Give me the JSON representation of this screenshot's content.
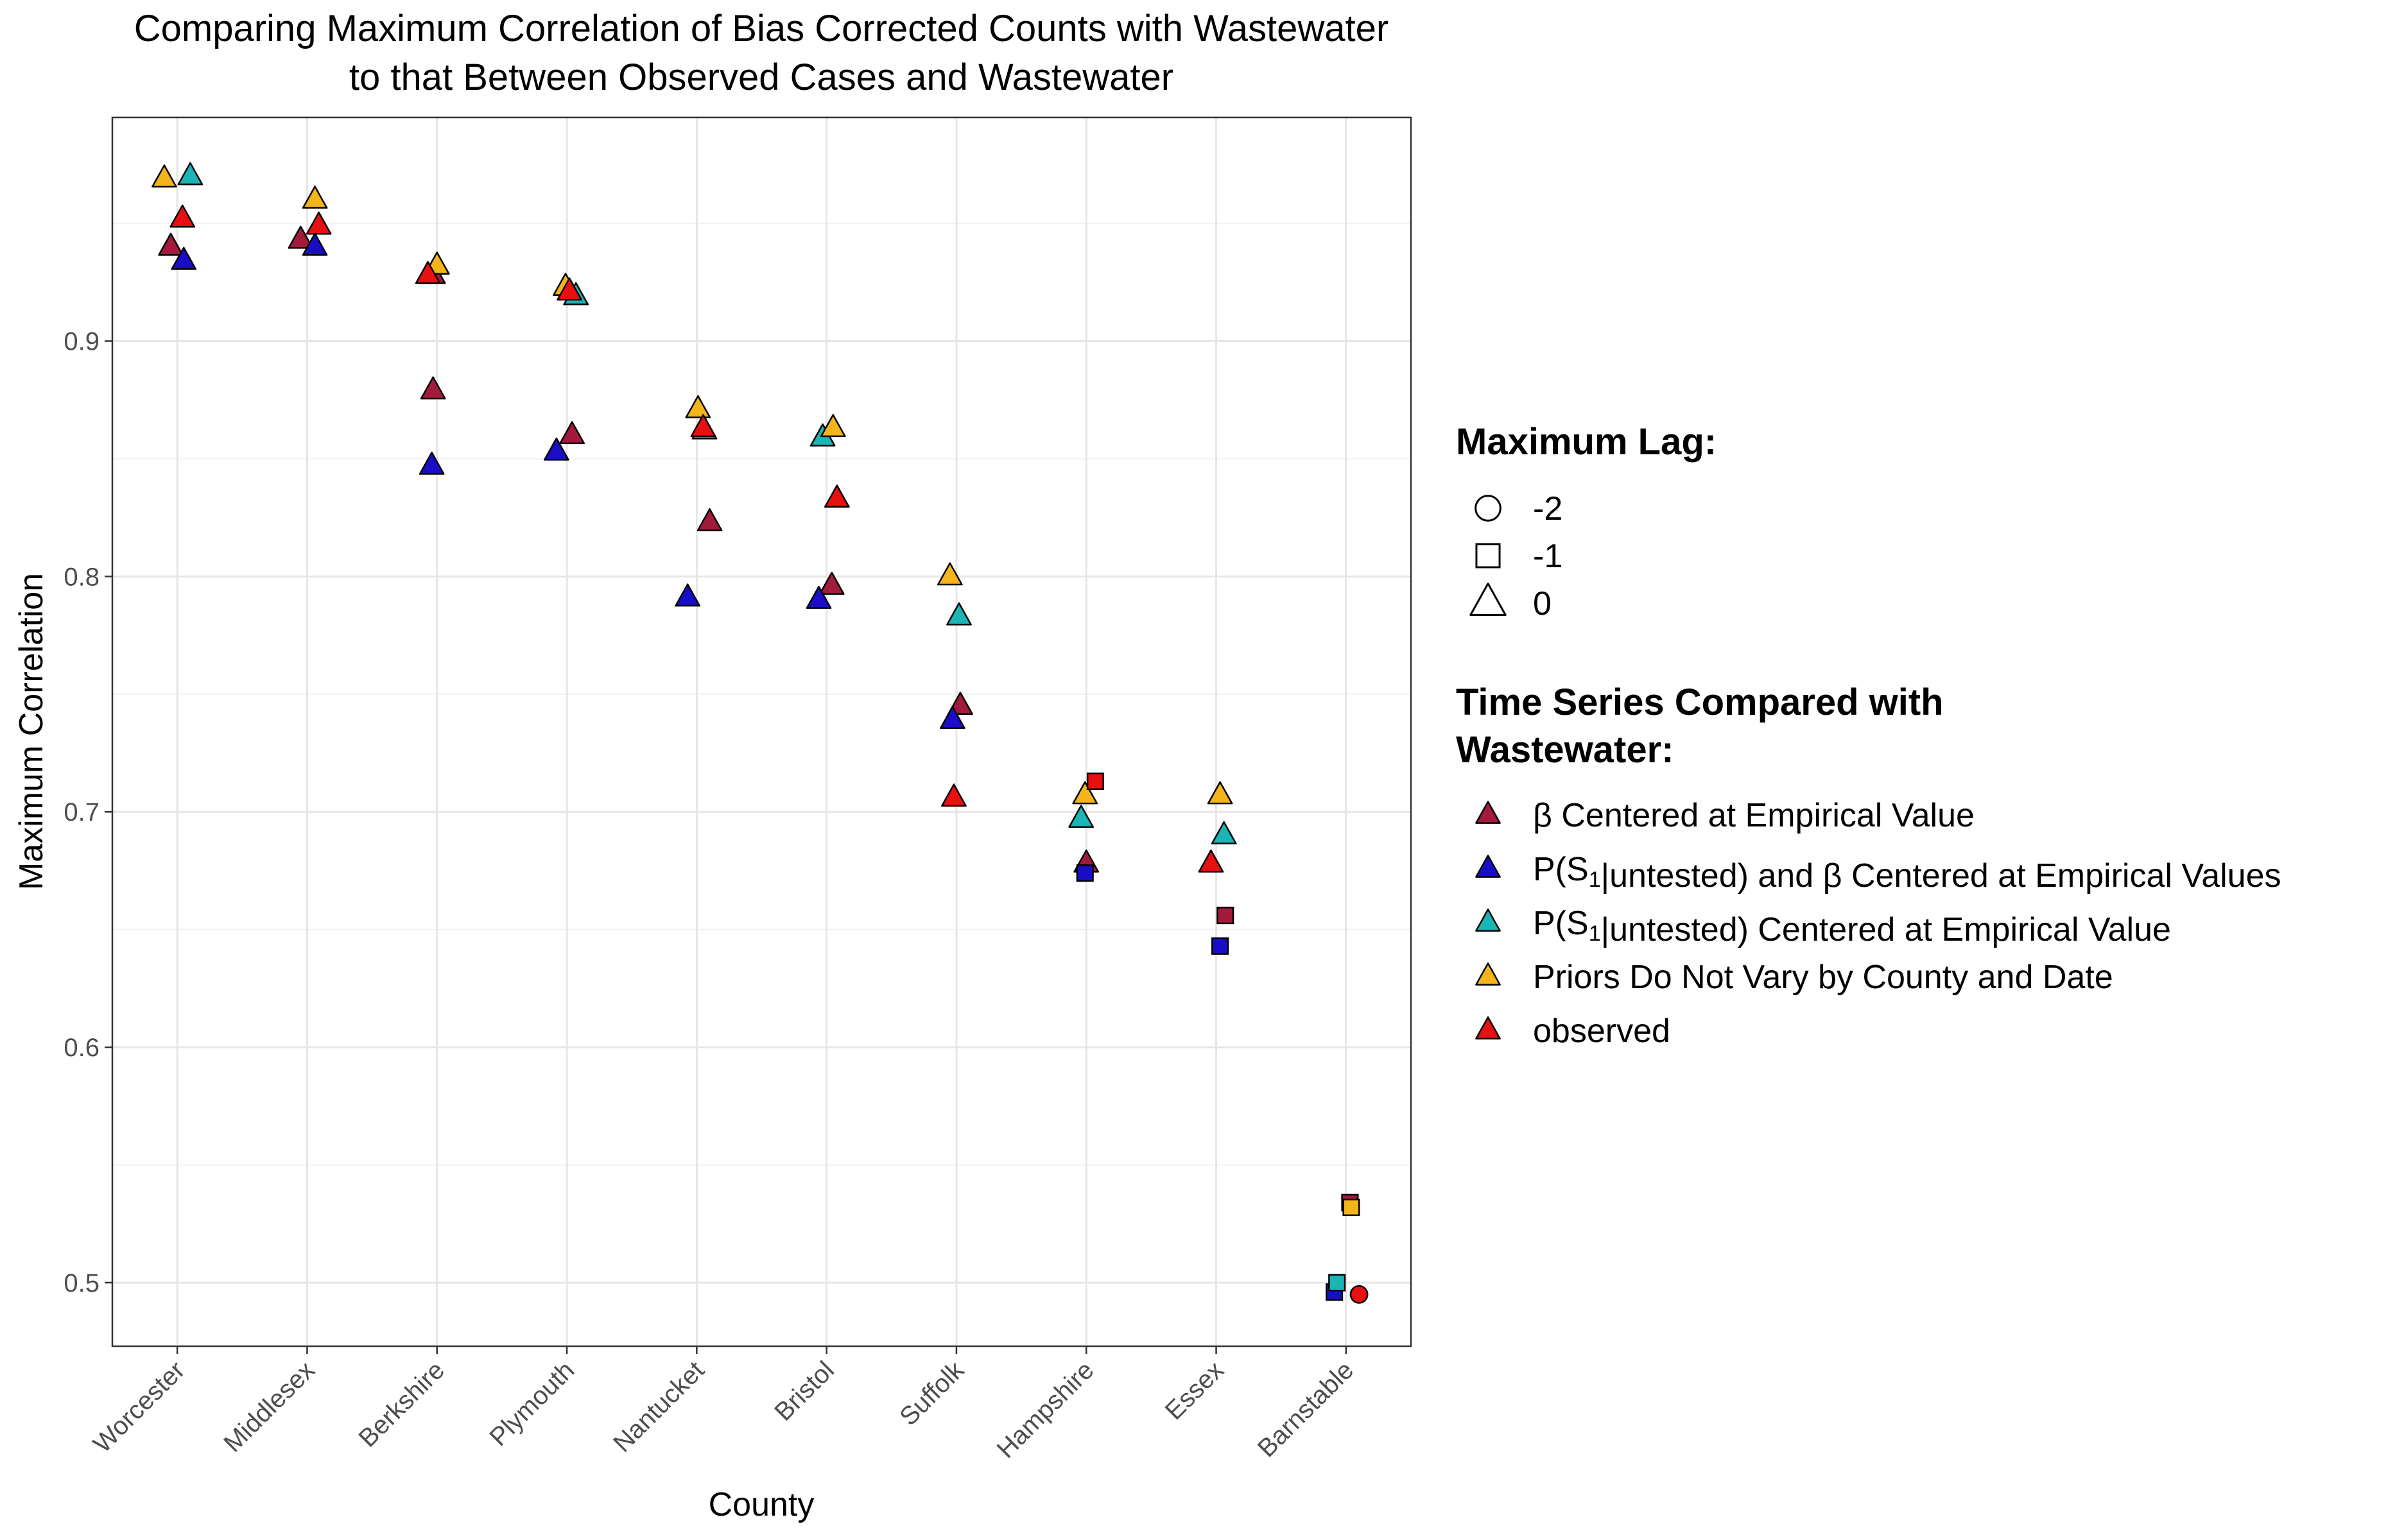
{
  "chart_data": {
    "type": "scatter",
    "title_lines": [
      "Comparing Maximum Correlation of Bias Corrected Counts with Wastewater",
      "to that Between Observed Cases and Wastewater"
    ],
    "xlabel": "County",
    "ylabel": "Maximum Correlation",
    "ylim": [
      0.473,
      0.995
    ],
    "y_ticks": [
      0.5,
      0.6,
      0.7,
      0.8,
      0.9
    ],
    "y_tick_labels": [
      "0.5",
      "0.6",
      "0.7",
      "0.8",
      "0.9"
    ],
    "grid": true,
    "categories": [
      "Worcester",
      "Middlesex",
      "Berkshire",
      "Plymouth",
      "Nantucket",
      "Bristol",
      "Suffolk",
      "Hampshire",
      "Essex",
      "Barnstable"
    ],
    "legend_placement": "right",
    "legends": {
      "shape": {
        "title": "Maximum Lag:",
        "items": [
          {
            "label": "-2",
            "shape": "circle"
          },
          {
            "label": "-1",
            "shape": "square"
          },
          {
            "label": "0",
            "shape": "triangle"
          }
        ]
      },
      "color": {
        "title_lines": [
          "Time Series Compared with",
          "Wastewater:"
        ]
      }
    },
    "series": [
      {
        "name": "β Centered at Empirical Value",
        "legend_parts": [
          {
            "t": "β Centered at Empirical Value"
          }
        ],
        "color": "#a31b3c",
        "points": [
          {
            "county": "Worcester",
            "offset": -0.05,
            "y": 0.94,
            "lag": 0
          },
          {
            "county": "Middlesex",
            "offset": -0.05,
            "y": 0.943,
            "lag": 0
          },
          {
            "county": "Berkshire",
            "offset": -0.03,
            "y": 0.928,
            "lag": 0
          },
          {
            "county": "Berkshire",
            "offset": -0.03,
            "y": 0.879,
            "lag": 0
          },
          {
            "county": "Plymouth",
            "offset": 0.04,
            "y": 0.86,
            "lag": 0
          },
          {
            "county": "Nantucket",
            "offset": 0.1,
            "y": 0.823,
            "lag": 0
          },
          {
            "county": "Bristol",
            "offset": 0.04,
            "y": 0.796,
            "lag": 0
          },
          {
            "county": "Suffolk",
            "offset": 0.03,
            "y": 0.745,
            "lag": 0
          },
          {
            "county": "Hampshire",
            "offset": 0.0,
            "y": 0.678,
            "lag": 0
          },
          {
            "county": "Essex",
            "offset": 0.07,
            "y": 0.656,
            "lag": -1
          },
          {
            "county": "Barnstable",
            "offset": 0.03,
            "y": 0.534,
            "lag": -1
          }
        ]
      },
      {
        "name": "P(S1|untested) and β Centered at Empirical Values",
        "legend_parts": [
          {
            "t": "P(S"
          },
          {
            "t": "1",
            "sub": true
          },
          {
            "t": "|untested) and β Centered at Empirical Values"
          }
        ],
        "color": "#1a0dc8",
        "points": [
          {
            "county": "Worcester",
            "offset": 0.05,
            "y": 0.934,
            "lag": 0
          },
          {
            "county": "Middlesex",
            "offset": 0.06,
            "y": 0.94,
            "lag": 0
          },
          {
            "county": "Berkshire",
            "offset": -0.04,
            "y": 0.847,
            "lag": 0
          },
          {
            "county": "Plymouth",
            "offset": -0.08,
            "y": 0.853,
            "lag": 0
          },
          {
            "county": "Nantucket",
            "offset": -0.07,
            "y": 0.791,
            "lag": 0
          },
          {
            "county": "Bristol",
            "offset": -0.06,
            "y": 0.79,
            "lag": 0
          },
          {
            "county": "Suffolk",
            "offset": -0.03,
            "y": 0.739,
            "lag": 0
          },
          {
            "county": "Hampshire",
            "offset": -0.01,
            "y": 0.674,
            "lag": -1
          },
          {
            "county": "Essex",
            "offset": 0.03,
            "y": 0.643,
            "lag": -1
          },
          {
            "county": "Barnstable",
            "offset": -0.09,
            "y": 0.496,
            "lag": -1
          }
        ]
      },
      {
        "name": "P(S1|untested) Centered at Empirical Value",
        "legend_parts": [
          {
            "t": "P(S"
          },
          {
            "t": "1",
            "sub": true
          },
          {
            "t": "|untested) Centered at Empirical Value"
          }
        ],
        "color": "#1bb5b5",
        "points": [
          {
            "county": "Worcester",
            "offset": 0.1,
            "y": 0.97,
            "lag": 0
          },
          {
            "county": "Plymouth",
            "offset": 0.07,
            "y": 0.919,
            "lag": 0
          },
          {
            "county": "Nantucket",
            "offset": 0.06,
            "y": 0.862,
            "lag": 0
          },
          {
            "county": "Bristol",
            "offset": -0.03,
            "y": 0.859,
            "lag": 0
          },
          {
            "county": "Suffolk",
            "offset": 0.02,
            "y": 0.783,
            "lag": 0
          },
          {
            "county": "Hampshire",
            "offset": -0.04,
            "y": 0.697,
            "lag": 0
          },
          {
            "county": "Essex",
            "offset": 0.06,
            "y": 0.69,
            "lag": 0
          },
          {
            "county": "Barnstable",
            "offset": -0.07,
            "y": 0.5,
            "lag": -1
          }
        ]
      },
      {
        "name": "Priors Do Not Vary by County and Date",
        "legend_parts": [
          {
            "t": "Priors Do Not Vary by County and Date"
          }
        ],
        "color": "#f3b519",
        "points": [
          {
            "county": "Worcester",
            "offset": -0.1,
            "y": 0.969,
            "lag": 0
          },
          {
            "county": "Middlesex",
            "offset": 0.06,
            "y": 0.96,
            "lag": 0
          },
          {
            "county": "Berkshire",
            "offset": 0.0,
            "y": 0.932,
            "lag": 0
          },
          {
            "county": "Plymouth",
            "offset": -0.01,
            "y": 0.923,
            "lag": 0
          },
          {
            "county": "Nantucket",
            "offset": 0.01,
            "y": 0.871,
            "lag": 0
          },
          {
            "county": "Bristol",
            "offset": 0.05,
            "y": 0.863,
            "lag": 0
          },
          {
            "county": "Suffolk",
            "offset": -0.05,
            "y": 0.8,
            "lag": 0
          },
          {
            "county": "Hampshire",
            "offset": -0.01,
            "y": 0.707,
            "lag": 0
          },
          {
            "county": "Essex",
            "offset": 0.03,
            "y": 0.707,
            "lag": 0
          },
          {
            "county": "Barnstable",
            "offset": 0.04,
            "y": 0.532,
            "lag": -1
          }
        ]
      },
      {
        "name": "observed",
        "legend_parts": [
          {
            "t": "observed"
          }
        ],
        "color": "#e81010",
        "points": [
          {
            "county": "Worcester",
            "offset": 0.04,
            "y": 0.952,
            "lag": 0
          },
          {
            "county": "Middlesex",
            "offset": 0.09,
            "y": 0.949,
            "lag": 0
          },
          {
            "county": "Berkshire",
            "offset": -0.07,
            "y": 0.928,
            "lag": 0
          },
          {
            "county": "Plymouth",
            "offset": 0.02,
            "y": 0.921,
            "lag": 0
          },
          {
            "county": "Nantucket",
            "offset": 0.05,
            "y": 0.863,
            "lag": 0
          },
          {
            "county": "Bristol",
            "offset": 0.08,
            "y": 0.833,
            "lag": 0
          },
          {
            "county": "Suffolk",
            "offset": -0.02,
            "y": 0.706,
            "lag": 0
          },
          {
            "county": "Hampshire",
            "offset": 0.07,
            "y": 0.713,
            "lag": -1
          },
          {
            "county": "Essex",
            "offset": -0.04,
            "y": 0.678,
            "lag": 0
          },
          {
            "county": "Barnstable",
            "offset": 0.1,
            "y": 0.495,
            "lag": -2
          }
        ]
      }
    ]
  }
}
